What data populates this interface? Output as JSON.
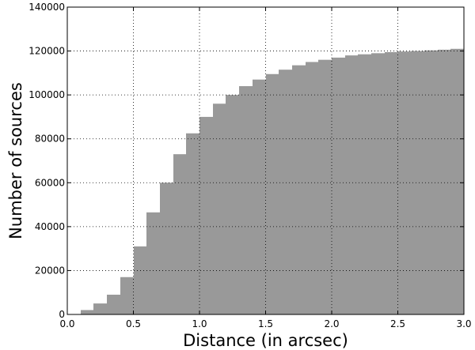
{
  "chart_data": {
    "type": "bar",
    "subtype": "cumulative-histogram",
    "xlabel": "Distance (in arcsec)",
    "ylabel": "Number of sources",
    "xlim": [
      0.0,
      3.0
    ],
    "ylim": [
      0,
      140000
    ],
    "bin_width": 0.1,
    "x_ticks": [
      "0.0",
      "0.5",
      "1.0",
      "1.5",
      "2.0",
      "2.5",
      "3.0"
    ],
    "y_ticks": [
      "0",
      "20000",
      "40000",
      "60000",
      "80000",
      "100000",
      "120000",
      "140000"
    ],
    "grid": true,
    "bar_color": "#999999",
    "bins_start": [
      0.0,
      0.1,
      0.2,
      0.3,
      0.4,
      0.5,
      0.6,
      0.7,
      0.8,
      0.9,
      1.0,
      1.1,
      1.2,
      1.3,
      1.4,
      1.5,
      1.6,
      1.7,
      1.8,
      1.9,
      2.0,
      2.1,
      2.2,
      2.3,
      2.4,
      2.5,
      2.6,
      2.7,
      2.8,
      2.9
    ],
    "values": [
      0,
      2000,
      5000,
      9000,
      17000,
      31000,
      46500,
      60000,
      73000,
      82500,
      90000,
      96000,
      100000,
      104000,
      107000,
      109500,
      111500,
      113500,
      115000,
      116000,
      117000,
      118000,
      118500,
      119000,
      119500,
      119800,
      120000,
      120300,
      120600,
      121000
    ]
  }
}
